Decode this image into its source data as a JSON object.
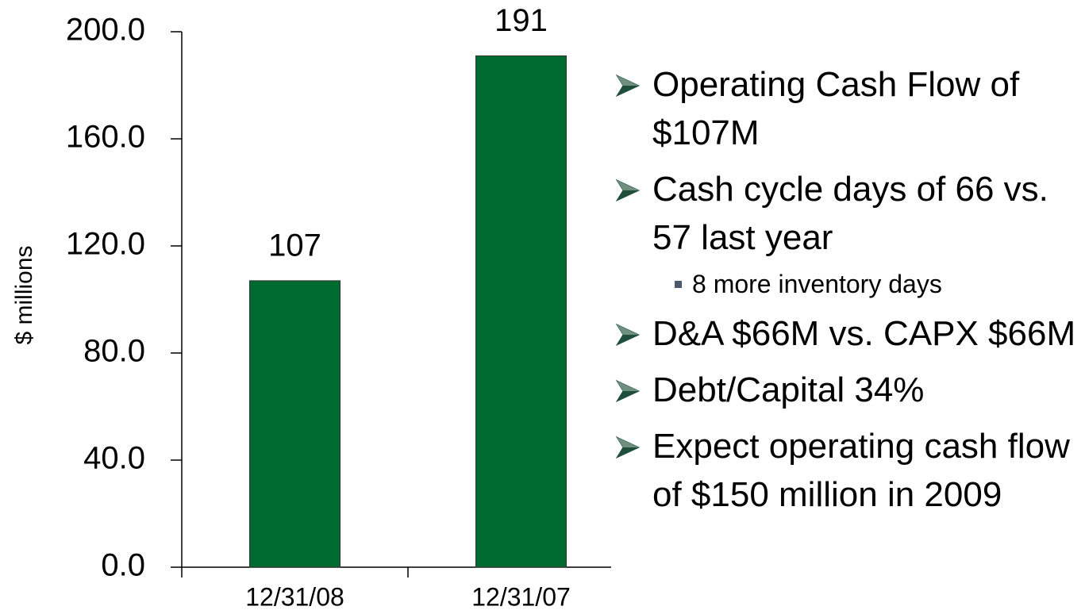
{
  "chart_data": {
    "type": "bar",
    "y_label": "$ millions",
    "categories": [
      "12/31/08",
      "12/31/07"
    ],
    "values": [
      107,
      191
    ],
    "color": "#006b30",
    "ylim": [
      0,
      200
    ],
    "yticks": [
      {
        "value": 0,
        "label": "0.0"
      },
      {
        "value": 40,
        "label": "40.0"
      },
      {
        "value": 80,
        "label": "80.0"
      },
      {
        "value": 120,
        "label": "120.0"
      },
      {
        "value": 160,
        "label": "160.0"
      },
      {
        "value": 200,
        "label": "200.0"
      }
    ]
  },
  "bullets": [
    {
      "text": "Operating Cash Flow of $107M"
    },
    {
      "text": "Cash cycle days of 66 vs. 57 last year",
      "sub": [
        "8 more inventory days"
      ]
    },
    {
      "text": "D&A $66M vs. CAPX $66M"
    },
    {
      "text": "Debt/Capital 34%"
    },
    {
      "text": "Expect operating cash flow of $150 million in 2009"
    }
  ]
}
